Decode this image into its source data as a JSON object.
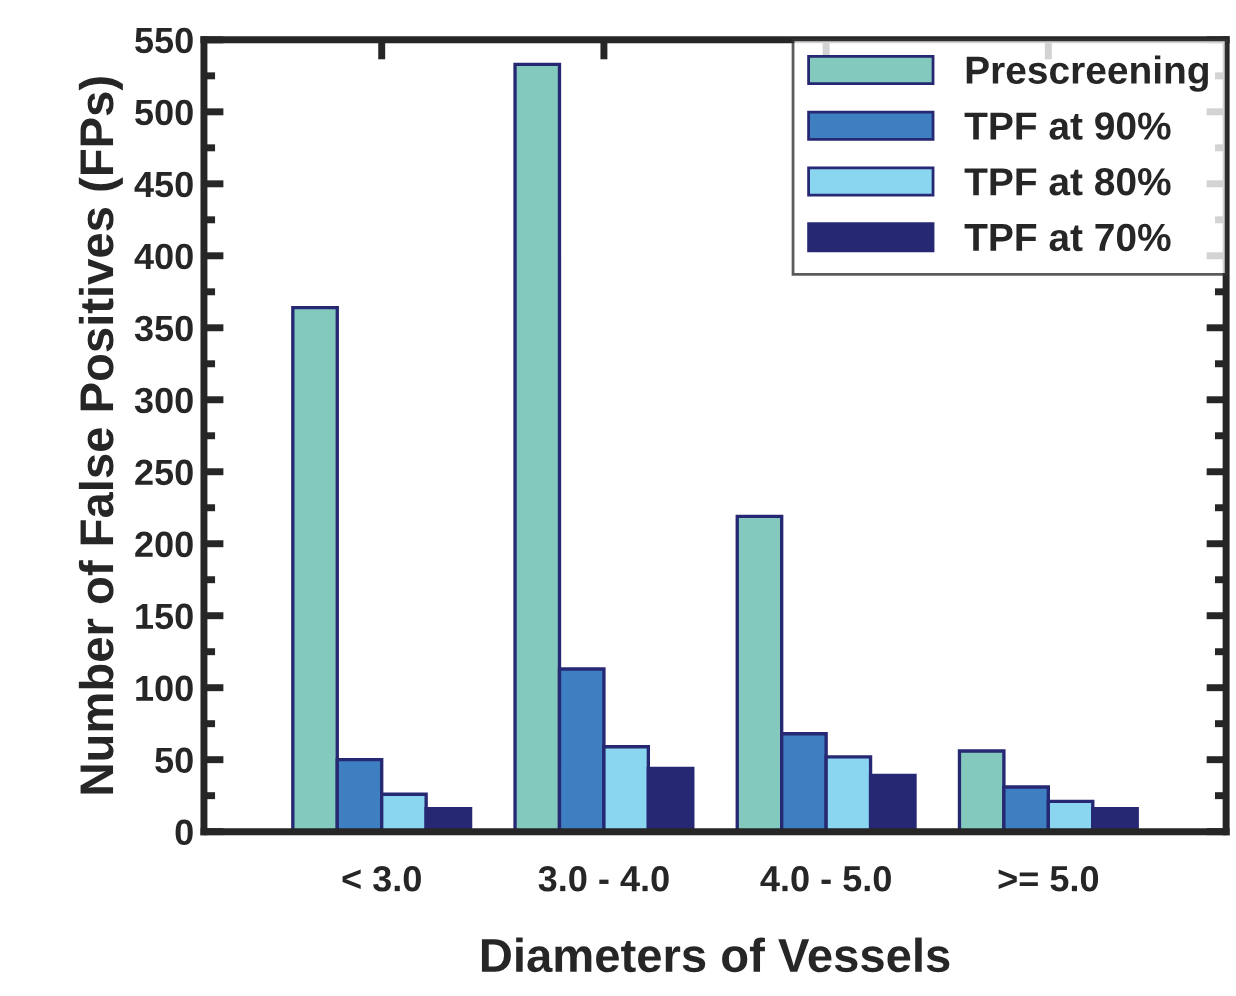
{
  "chart_data": {
    "type": "bar",
    "xlabel": "Diameters of Vessels",
    "ylabel": "Number of False Positives (FPs)",
    "categories": [
      "< 3.0",
      "3.0 - 4.0",
      "4.0 - 5.0",
      ">= 5.0"
    ],
    "series": [
      {
        "name": "Prescreening",
        "color": "#84c9bd",
        "values": [
          364,
          533,
          219,
          56
        ]
      },
      {
        "name": "TPF at 90%",
        "color": "#3d7fc1",
        "values": [
          50,
          113,
          68,
          31
        ]
      },
      {
        "name": "TPF at 80%",
        "color": "#8ad5f0",
        "values": [
          26,
          59,
          52,
          21
        ]
      },
      {
        "name": "TPF at 70%",
        "color": "#262873",
        "values": [
          16,
          44,
          39,
          16
        ]
      }
    ],
    "ylim": [
      0,
      550
    ],
    "yticks": [
      0,
      50,
      100,
      150,
      200,
      250,
      300,
      350,
      400,
      450,
      500,
      550
    ],
    "grid": false,
    "legend": "top right"
  }
}
